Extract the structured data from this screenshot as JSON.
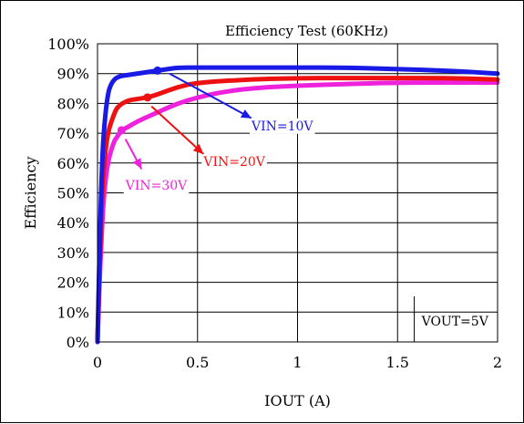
{
  "chart_data": {
    "type": "line",
    "title": "Efficiency Test (60KHz)",
    "xlabel": "IOUT (A)",
    "ylabel": "Efficiency",
    "xlim": [
      0,
      2
    ],
    "ylim": [
      0,
      100
    ],
    "x_ticks": [
      0,
      0.5,
      1,
      1.5,
      2
    ],
    "x_tick_labels": [
      "0",
      "0.5",
      "1",
      "1.5",
      "2"
    ],
    "y_ticks": [
      0,
      10,
      20,
      30,
      40,
      50,
      60,
      70,
      80,
      90,
      100
    ],
    "y_tick_labels": [
      "0%",
      "10%",
      "20%",
      "30%",
      "40%",
      "50%",
      "60%",
      "70%",
      "80%",
      "90%",
      "100%"
    ],
    "grid": true,
    "series": [
      {
        "name": "VIN=10V",
        "color": "#1a1ae6",
        "points": [
          [
            0,
            0
          ],
          [
            0.01,
            30
          ],
          [
            0.02,
            55
          ],
          [
            0.03,
            70
          ],
          [
            0.05,
            83
          ],
          [
            0.07,
            87
          ],
          [
            0.1,
            89
          ],
          [
            0.15,
            89.5
          ],
          [
            0.2,
            90
          ],
          [
            0.25,
            90.5
          ],
          [
            0.3,
            91
          ],
          [
            0.35,
            91.5
          ],
          [
            0.4,
            92
          ],
          [
            0.5,
            92
          ],
          [
            0.75,
            92
          ],
          [
            1.0,
            92
          ],
          [
            1.25,
            92
          ],
          [
            1.5,
            91.5
          ],
          [
            1.75,
            91
          ],
          [
            2.0,
            90
          ]
        ]
      },
      {
        "name": "VIN=20V",
        "color": "#ee1111",
        "points": [
          [
            0,
            0
          ],
          [
            0.01,
            25
          ],
          [
            0.02,
            45
          ],
          [
            0.03,
            58
          ],
          [
            0.05,
            70
          ],
          [
            0.08,
            76
          ],
          [
            0.1,
            79
          ],
          [
            0.15,
            81
          ],
          [
            0.2,
            81.5
          ],
          [
            0.25,
            82
          ],
          [
            0.3,
            83
          ],
          [
            0.4,
            85.5
          ],
          [
            0.5,
            87
          ],
          [
            0.75,
            88
          ],
          [
            1.0,
            88.5
          ],
          [
            1.25,
            88.5
          ],
          [
            1.5,
            88.5
          ],
          [
            1.75,
            88.5
          ],
          [
            2.0,
            88
          ]
        ]
      },
      {
        "name": "VIN=30V",
        "color": "#ee22dd",
        "points": [
          [
            0,
            0
          ],
          [
            0.01,
            20
          ],
          [
            0.02,
            35
          ],
          [
            0.03,
            48
          ],
          [
            0.05,
            60
          ],
          [
            0.08,
            67
          ],
          [
            0.1,
            69
          ],
          [
            0.12,
            71
          ],
          [
            0.15,
            72
          ],
          [
            0.2,
            74
          ],
          [
            0.3,
            77
          ],
          [
            0.4,
            80
          ],
          [
            0.5,
            82
          ],
          [
            0.6,
            83.5
          ],
          [
            0.75,
            85
          ],
          [
            1.0,
            86
          ],
          [
            1.25,
            86.5
          ],
          [
            1.5,
            87
          ],
          [
            2.0,
            87
          ]
        ]
      }
    ],
    "markers": [
      {
        "series": "VIN=10V",
        "x": 0.3,
        "y": 91
      },
      {
        "series": "VIN=20V",
        "x": 0.25,
        "y": 82
      },
      {
        "series": "VIN=30V",
        "x": 0.12,
        "y": 71
      }
    ],
    "annotations": [
      {
        "text": "VIN=10V",
        "color": "#1a1ae6",
        "from": [
          0.36,
          90
        ],
        "to": [
          0.77,
          75
        ],
        "label_at": [
          0.77,
          71
        ]
      },
      {
        "text": "VIN=20V",
        "color": "#ee1111",
        "from": [
          0.27,
          79
        ],
        "to": [
          0.53,
          63
        ],
        "label_at": [
          0.53,
          59
        ]
      },
      {
        "text": "VIN=30V",
        "color": "#ee22dd",
        "from": [
          0.14,
          68
        ],
        "to": [
          0.22,
          58
        ],
        "label_at": [
          0.14,
          51
        ]
      },
      {
        "text": "VOUT=5V",
        "color": "#000000",
        "label_at": [
          1.62,
          5.5
        ]
      }
    ]
  }
}
